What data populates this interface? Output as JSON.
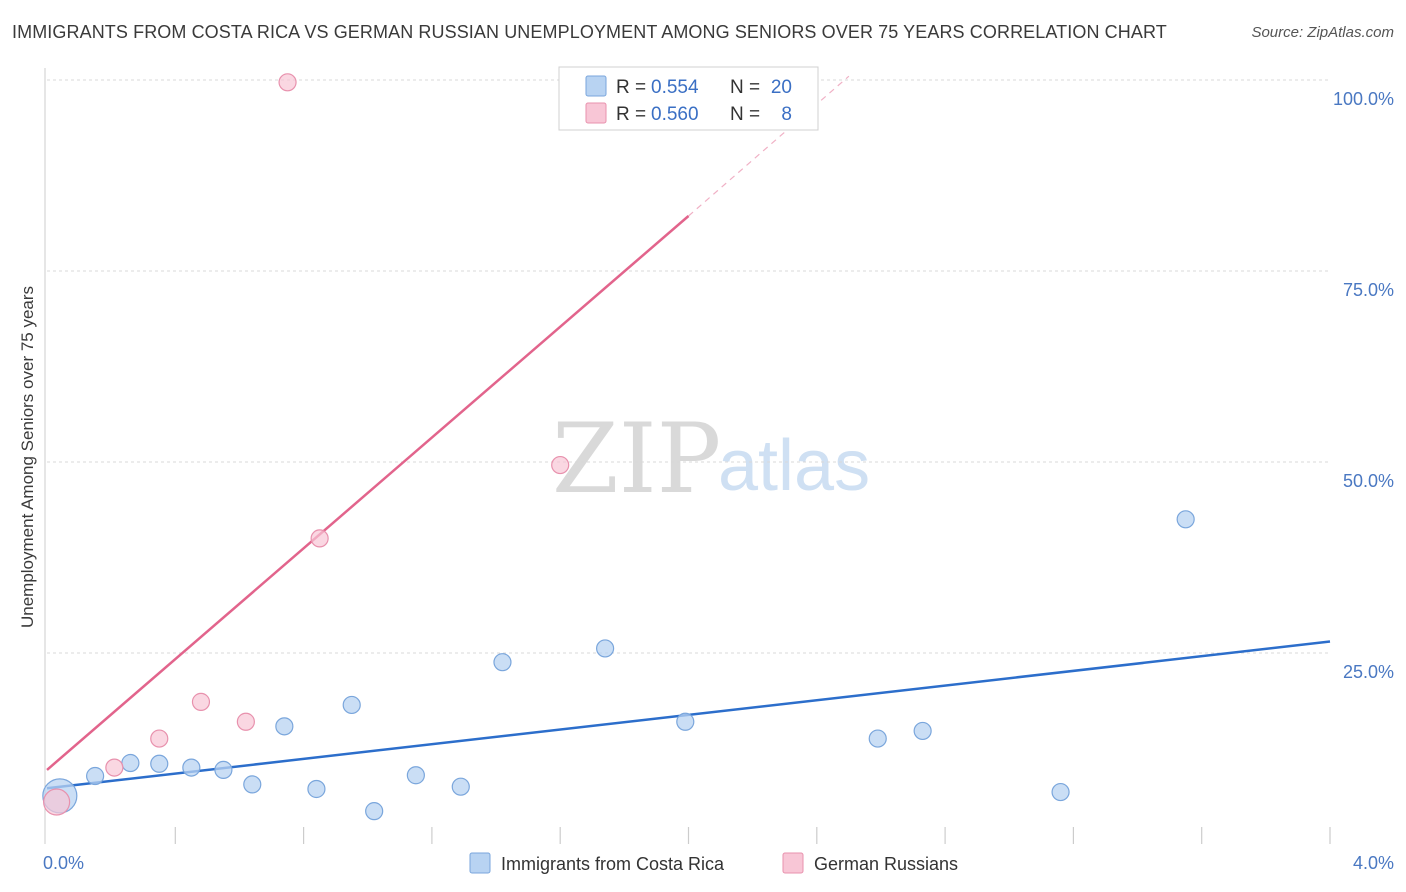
{
  "header": {
    "title": "IMMIGRANTS FROM COSTA RICA VS GERMAN RUSSIAN UNEMPLOYMENT AMONG SENIORS OVER 75 YEARS CORRELATION CHART",
    "source": "Source: ZipAtlas.com"
  },
  "watermark": {
    "zip": "ZIP",
    "atlas": "atlas"
  },
  "colors": {
    "blue_fill": "#b8d3f2",
    "blue_stroke": "#7aa6dc",
    "blue_line": "#2c6ecb",
    "pink_fill": "#f8c6d6",
    "pink_stroke": "#e891ad",
    "pink_line": "#e2648c",
    "grid": "#d8d8d8",
    "axis_label": "#4a78c2"
  },
  "legend": {
    "r_label": "R =",
    "n_label": "N =",
    "rows": [
      {
        "r": "0.554",
        "n": "20"
      },
      {
        "r": "0.560",
        "n": "8"
      }
    ]
  },
  "chart_data": {
    "type": "scatter",
    "title": "IMMIGRANTS FROM COSTA RICA VS GERMAN RUSSIAN UNEMPLOYMENT AMONG SENIORS OVER 75 YEARS CORRELATION CHART",
    "xlabel": "",
    "ylabel": "Unemployment Among Seniors over 75 years",
    "xlim": [
      0,
      4.0
    ],
    "ylim": [
      0,
      100
    ],
    "x_tick_labels": [
      "0.0%",
      "4.0%"
    ],
    "y_ticks": [
      25,
      50,
      75,
      100
    ],
    "y_tick_labels": [
      "25.0%",
      "50.0%",
      "75.0%",
      "100.0%"
    ],
    "series": [
      {
        "name": "Immigrants from Costa Rica",
        "color": "blue",
        "points": [
          {
            "x": 0.04,
            "y": 6.3,
            "size": "large"
          },
          {
            "x": 0.15,
            "y": 8.9
          },
          {
            "x": 0.26,
            "y": 10.6
          },
          {
            "x": 0.35,
            "y": 10.5
          },
          {
            "x": 0.45,
            "y": 10.0
          },
          {
            "x": 0.55,
            "y": 9.7
          },
          {
            "x": 0.64,
            "y": 7.8
          },
          {
            "x": 0.74,
            "y": 15.4
          },
          {
            "x": 0.84,
            "y": 7.2
          },
          {
            "x": 0.95,
            "y": 18.2
          },
          {
            "x": 1.02,
            "y": 4.3
          },
          {
            "x": 1.15,
            "y": 9.0
          },
          {
            "x": 1.29,
            "y": 7.5
          },
          {
            "x": 1.42,
            "y": 23.8
          },
          {
            "x": 1.74,
            "y": 25.6
          },
          {
            "x": 1.99,
            "y": 16.0
          },
          {
            "x": 2.59,
            "y": 13.8
          },
          {
            "x": 2.73,
            "y": 14.8
          },
          {
            "x": 3.16,
            "y": 6.8
          },
          {
            "x": 3.55,
            "y": 42.5
          }
        ],
        "trend": {
          "x": [
            0,
            4.0
          ],
          "y": [
            7.3,
            26.5
          ]
        }
      },
      {
        "name": "German Russians",
        "color": "pink",
        "points": [
          {
            "x": 0.03,
            "y": 5.5,
            "size": "medium"
          },
          {
            "x": 0.21,
            "y": 10.0
          },
          {
            "x": 0.35,
            "y": 13.8
          },
          {
            "x": 0.48,
            "y": 18.6
          },
          {
            "x": 0.62,
            "y": 16.0
          },
          {
            "x": 0.75,
            "y": 99.7
          },
          {
            "x": 0.85,
            "y": 40.0
          },
          {
            "x": 1.6,
            "y": 49.6
          }
        ],
        "trend": {
          "x": [
            0,
            2.0
          ],
          "y": [
            9.7,
            82.2
          ]
        },
        "trend_dashed_extension": {
          "x": [
            2.0,
            2.5
          ],
          "y": [
            82.2,
            100.5
          ]
        }
      }
    ]
  }
}
